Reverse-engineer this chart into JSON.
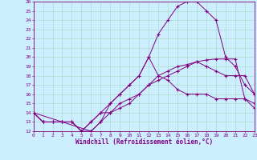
{
  "xlabel": "Windchill (Refroidissement éolien,°C)",
  "bg_color": "#cceeff",
  "line_color": "#800080",
  "grid_color": "#aaddcc",
  "xlim": [
    0,
    23
  ],
  "ylim": [
    12,
    26
  ],
  "xticks": [
    0,
    1,
    2,
    3,
    4,
    5,
    6,
    7,
    8,
    9,
    10,
    11,
    12,
    13,
    14,
    15,
    16,
    17,
    18,
    19,
    20,
    21,
    22,
    23
  ],
  "yticks": [
    12,
    13,
    14,
    15,
    16,
    17,
    18,
    19,
    20,
    21,
    22,
    23,
    24,
    25,
    26
  ],
  "line1_x": [
    0,
    1,
    2,
    3,
    4,
    5,
    6,
    7,
    8,
    9,
    10,
    11,
    12,
    13,
    14,
    15,
    16,
    17,
    18,
    19,
    20,
    21,
    22,
    23
  ],
  "line1_y": [
    14,
    13,
    13,
    13,
    13,
    12,
    12,
    13,
    14,
    14.5,
    15,
    16,
    17,
    18,
    18.5,
    19,
    19.2,
    19.5,
    19.7,
    19.8,
    19.8,
    19.8,
    15.5,
    14.5
  ],
  "line2_x": [
    0,
    1,
    2,
    3,
    4,
    5,
    6,
    7,
    8,
    9,
    10,
    11,
    12,
    13,
    14,
    15,
    16,
    17,
    18,
    19,
    20,
    21,
    22,
    23
  ],
  "line2_y": [
    14,
    13,
    13,
    13,
    13,
    12,
    13,
    14,
    15,
    16,
    17,
    18,
    20,
    22.5,
    24,
    25.5,
    26,
    26,
    25,
    24,
    20,
    19,
    17,
    16
  ],
  "line3_x": [
    0,
    6,
    7,
    8,
    9,
    10,
    11,
    12,
    13,
    14,
    15,
    16,
    17,
    18,
    19,
    20,
    21,
    22,
    23
  ],
  "line3_y": [
    14,
    12,
    13,
    15,
    16,
    17,
    18,
    20,
    18,
    17.5,
    16.5,
    16,
    16,
    16,
    15.5,
    15.5,
    15.5,
    15.5,
    15
  ],
  "line4_x": [
    0,
    1,
    2,
    3,
    4,
    5,
    6,
    7,
    8,
    9,
    10,
    11,
    12,
    13,
    14,
    15,
    16,
    17,
    18,
    19,
    20,
    21,
    22,
    23
  ],
  "line4_y": [
    14,
    13,
    13,
    13,
    13,
    12,
    13,
    14,
    14,
    15,
    15.5,
    16,
    17,
    17.5,
    18,
    18.5,
    19,
    19.5,
    19,
    18.5,
    18,
    18,
    18,
    16
  ]
}
